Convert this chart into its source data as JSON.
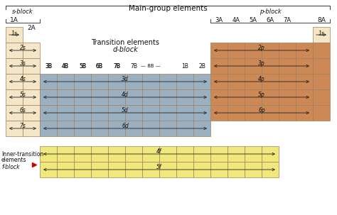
{
  "bg_color": "#ffffff",
  "s_block_color": "#f5e6c8",
  "p_block_color": "#cc8855",
  "d_block_color": "#9ab0c0",
  "f_block_color": "#f0e87a",
  "grid_ec": "#a08060",
  "text_color": "#111111",
  "arrow_color": "#222222",
  "title": "Main-group elements",
  "s_block_label": "s-block",
  "p_block_label": "p-block",
  "d_block_label": "Transition elements\nd-block",
  "f_block_label": "Inner-transition\nelements\nf-block",
  "col1A": "1A",
  "col2A": "2A",
  "col8A": "8A",
  "p_col_labels": [
    "3A",
    "4A",
    "5A",
    "6A",
    "7A"
  ],
  "d_col_labels": [
    "3B",
    "4B",
    "5B",
    "6B",
    "7B",
    "8B",
    "1B",
    "2B"
  ],
  "s_annots": [
    "1s",
    "2s",
    "3s",
    "4s",
    "5s",
    "6s",
    "7s"
  ],
  "d_annots": [
    "3d",
    "4d",
    "5d",
    "6d"
  ],
  "p_annots": [
    "2p",
    "3p",
    "4p",
    "5p",
    "6p"
  ],
  "f_annots": [
    "4f",
    "5f"
  ]
}
